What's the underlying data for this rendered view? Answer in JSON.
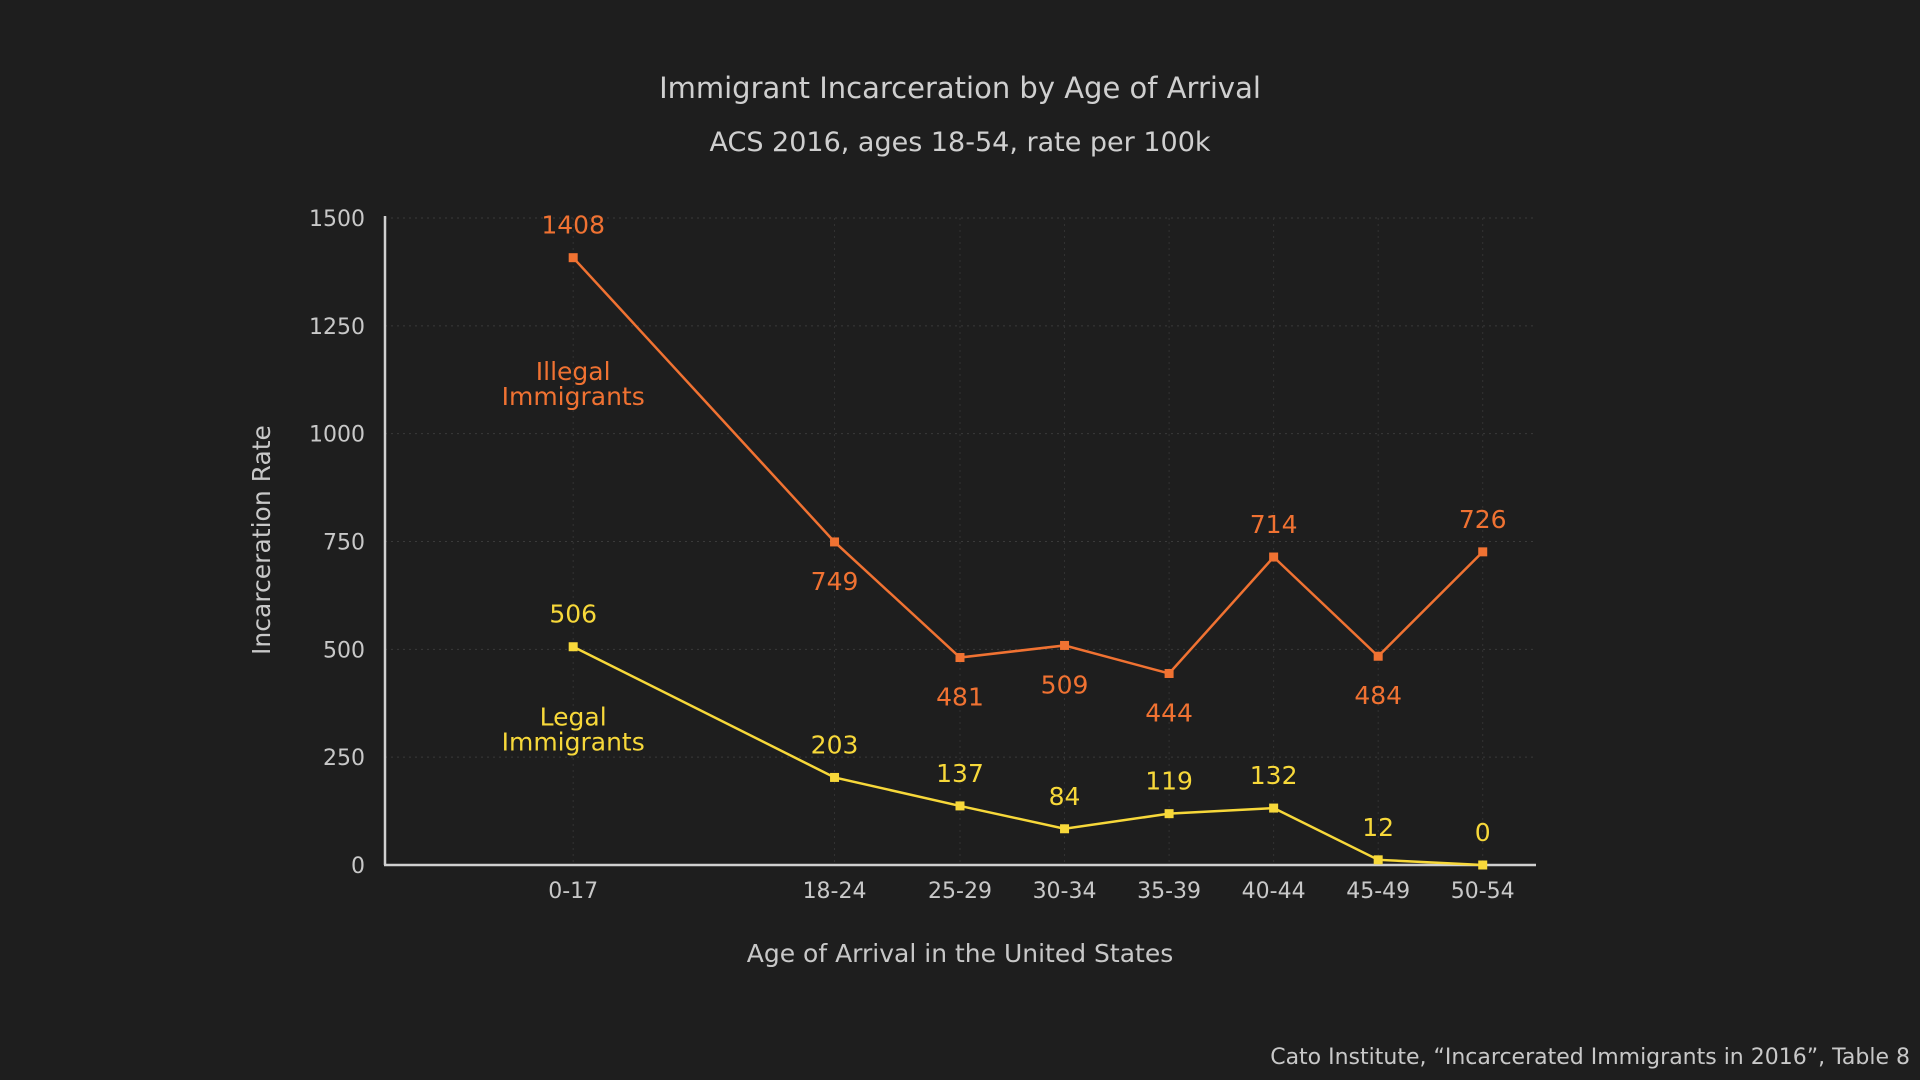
{
  "chart_data": {
    "type": "line",
    "title": "Immigrant Incarceration by Age of Arrival",
    "subtitle": "ACS 2016, ages 18-54, rate per 100k",
    "xlabel": "Age of Arrival in the United States",
    "ylabel": "Incarceration Rate",
    "categories": [
      "0-17",
      "18-24",
      "25-29",
      "30-34",
      "35-39",
      "40-44",
      "45-49",
      "50-54"
    ],
    "category_midpoints": [
      8.5,
      21,
      27,
      32,
      37,
      42,
      47,
      52
    ],
    "xlim": [
      -0.5,
      54.5
    ],
    "ylim": [
      0,
      1500
    ],
    "yticks": [
      0,
      250,
      500,
      750,
      1000,
      1250,
      1500
    ],
    "grid": true,
    "series": [
      {
        "name": "Illegal Immigrants",
        "label_lines": [
          "Illegal",
          "Immigrants"
        ],
        "label_value_position": 1110,
        "color": "#f07232",
        "values": [
          1408,
          749,
          481,
          509,
          444,
          714,
          484,
          726
        ],
        "label_side": [
          "above",
          "below",
          "below",
          "below",
          "below",
          "above",
          "below",
          "above"
        ]
      },
      {
        "name": "Legal Immigrants",
        "label_lines": [
          "Legal",
          "Immigrants"
        ],
        "label_value_position": 310,
        "color": "#f7d83a",
        "values": [
          506,
          203,
          137,
          84,
          119,
          132,
          12,
          0
        ],
        "label_side": [
          "above",
          "above",
          "above",
          "above",
          "above",
          "above",
          "above",
          "above"
        ]
      }
    ],
    "source": "Cato Institute, “Incarcerated Immigrants in 2016”, Table 8"
  }
}
